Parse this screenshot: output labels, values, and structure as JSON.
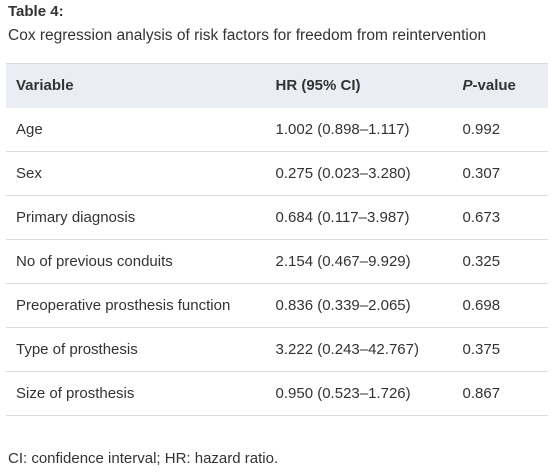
{
  "table_label": "Table 4:",
  "caption": "Cox regression analysis of risk factors for freedom from reintervention",
  "headers": {
    "variable": "Variable",
    "hr": "HR (95% CI)",
    "p_italic": "P",
    "p_rest": "-value"
  },
  "rows": [
    {
      "variable": "Age",
      "hr": "1.002 (0.898–1.117)",
      "p": "0.992"
    },
    {
      "variable": "Sex",
      "hr": "0.275 (0.023–3.280)",
      "p": "0.307"
    },
    {
      "variable": "Primary diagnosis",
      "hr": "0.684 (0.117–3.987)",
      "p": "0.673"
    },
    {
      "variable": "No of previous conduits",
      "hr": "2.154 (0.467–9.929)",
      "p": "0.325"
    },
    {
      "variable": "Preoperative prosthesis function",
      "hr": "0.836 (0.339–2.065)",
      "p": "0.698"
    },
    {
      "variable": "Type of prosthesis",
      "hr": "3.222 (0.243–42.767)",
      "p": "0.375"
    },
    {
      "variable": "Size of prosthesis",
      "hr": "0.950 (0.523–1.726)",
      "p": "0.867"
    }
  ],
  "footnote": "CI: confidence interval; HR: hazard ratio."
}
